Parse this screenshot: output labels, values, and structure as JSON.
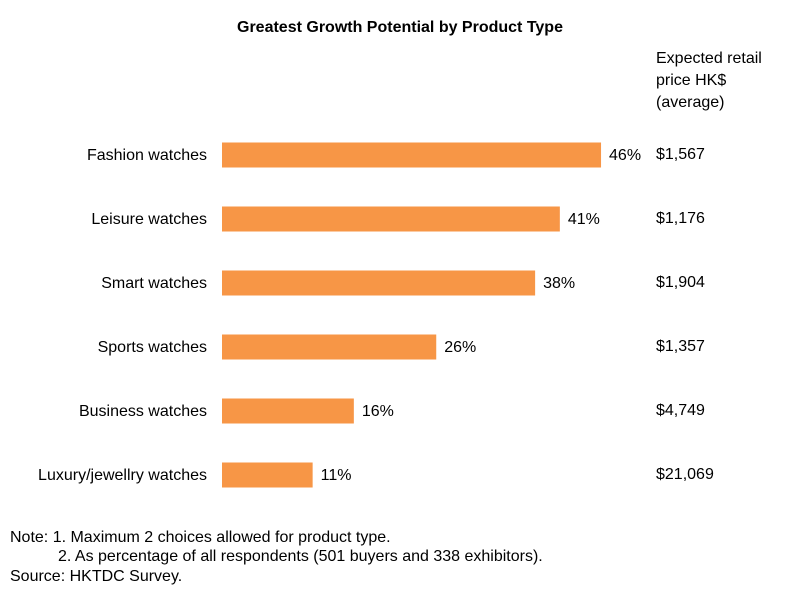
{
  "chart_data": {
    "type": "bar",
    "orientation": "horizontal",
    "title": "Greatest Growth Potential by Product Type",
    "categories": [
      "Fashion watches",
      "Leisure watches",
      "Smart watches",
      "Sports watches",
      "Business watches",
      "Luxury/jewellry watches"
    ],
    "values": [
      46,
      41,
      38,
      26,
      16,
      11
    ],
    "value_labels": [
      "46%",
      "41%",
      "38%",
      "26%",
      "16%",
      "11%"
    ],
    "color": "#f79646",
    "price_header": [
      "Expected retail",
      "price HK$",
      "(average)"
    ],
    "prices": [
      "$1,567",
      "$1,176",
      "$1,904",
      "$1,357",
      "$4,749",
      "$21,069"
    ]
  },
  "notes": [
    "Note: 1. Maximum 2 choices allowed for product type.",
    "2. As percentage of all respondents (501 buyers and 338 exhibitors).",
    "Source: HKTDC Survey."
  ]
}
